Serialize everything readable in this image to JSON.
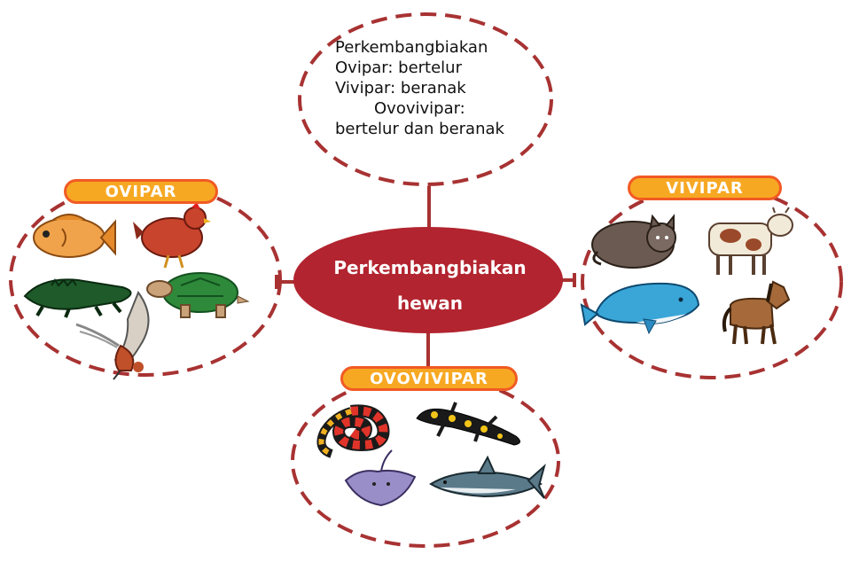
{
  "definition": {
    "lines": [
      "Perkembangbiakan",
      "Ovipar: bertelur",
      "Vivipar: beranak",
      "Ovovivipar:",
      "bertelur dan beranak"
    ]
  },
  "center": {
    "lines": [
      "Perkembangbiakan",
      "hewan"
    ],
    "color": "#b2242f"
  },
  "groups": {
    "ovipar": {
      "label": "OVIPAR",
      "animals": [
        "fish-icon",
        "chicken-icon",
        "crocodile-icon",
        "turtle-icon",
        "bird-icon"
      ]
    },
    "vivipar": {
      "label": "VIVIPAR",
      "animals": [
        "cat-icon",
        "cow-icon",
        "whale-icon",
        "horse-icon"
      ]
    },
    "ovovivipar": {
      "label": "OVOVIVIPAR",
      "animals": [
        "snake-icon",
        "salamander-icon",
        "stingray-icon",
        "shark-icon"
      ]
    }
  },
  "colors": {
    "dash": "#a83232",
    "pill_fill": "#f7a823",
    "pill_border": "#f15a24",
    "connector": "#a83232"
  }
}
